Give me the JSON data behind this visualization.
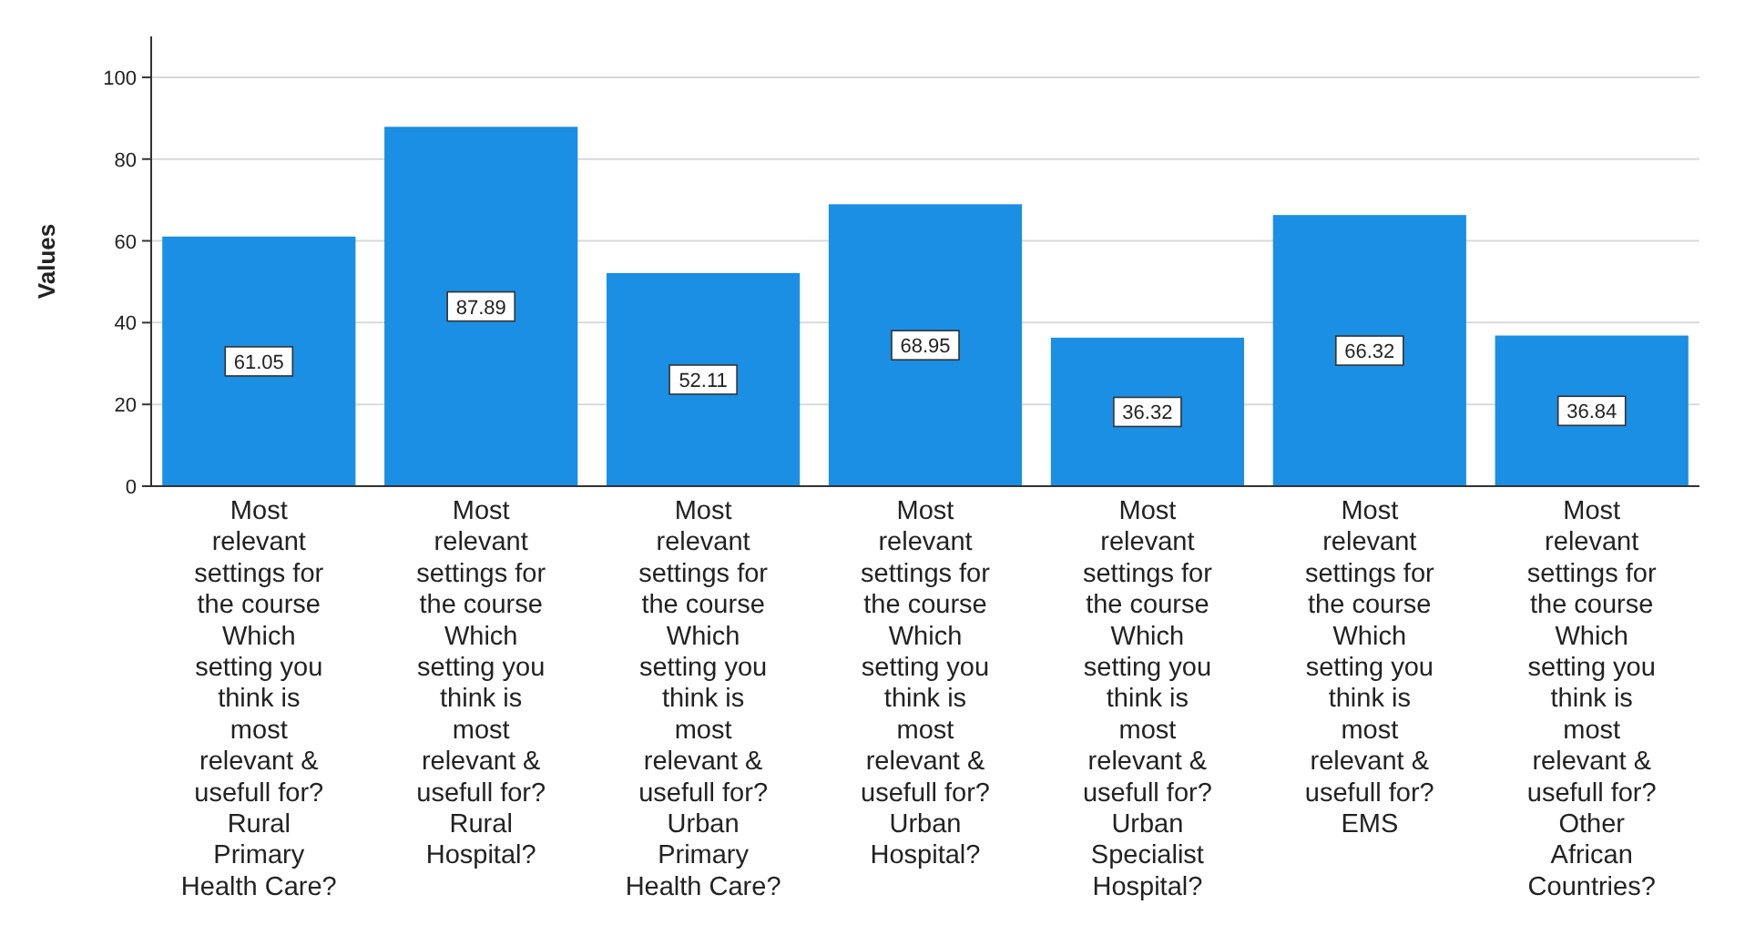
{
  "chart_data": {
    "type": "bar",
    "ylabel": "Values",
    "categories": [
      "Most relevant settings for the course Which setting you think is most relevant & usefull for? Rural Primary Health Care?",
      "Most relevant settings for the course Which setting you think is most relevant & usefull for? Rural Hospital?",
      "Most relevant settings for the course Which setting you think is most relevant & usefull for? Urban Primary Health Care?",
      "Most relevant settings for the course Which setting you think is most relevant & usefull for? Urban Hospital?",
      "Most relevant settings for the course Which setting you think is most relevant & usefull for? Urban Specialist Hospital?",
      "Most relevant settings for the course Which setting you think is most relevant & usefull for? EMS",
      "Most relevant settings for the course Which setting you think is most relevant & usefull for? Other African Countries?"
    ],
    "values": [
      61.05,
      87.89,
      52.11,
      68.95,
      36.32,
      66.32,
      36.84
    ],
    "color": "#1a8fe3",
    "ylim": [
      0,
      110
    ],
    "yticks": [
      0,
      20,
      40,
      60,
      80,
      100
    ],
    "grid": "y",
    "data_labels": true
  }
}
